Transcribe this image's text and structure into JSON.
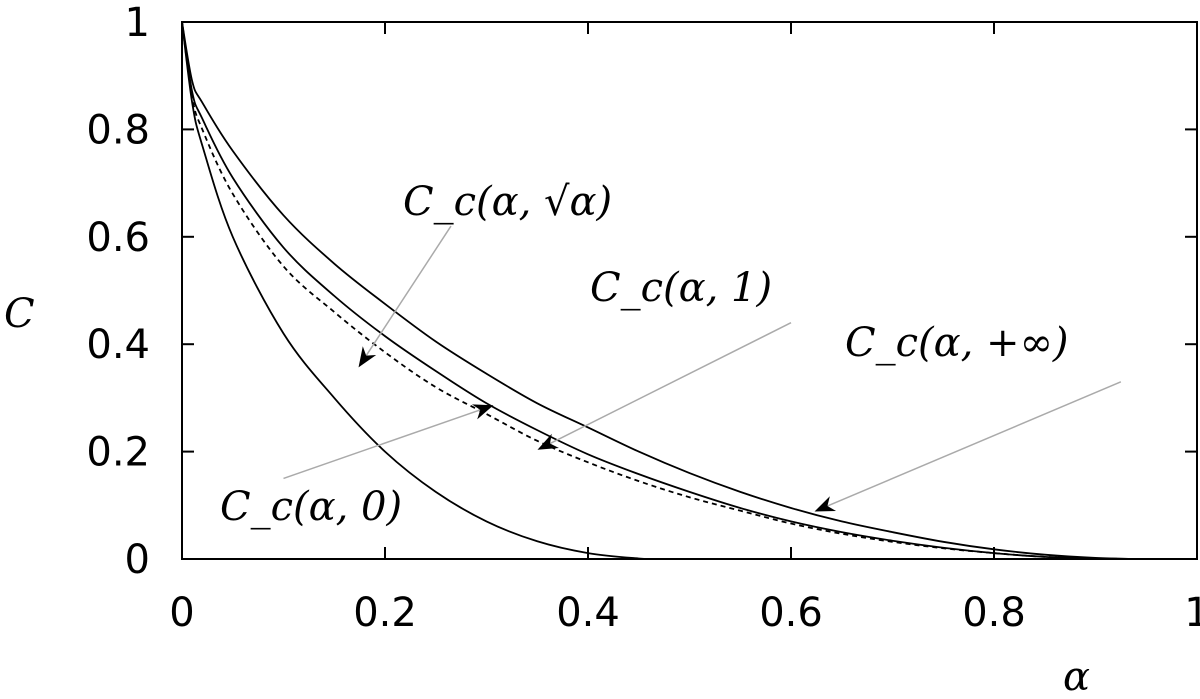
{
  "chart_data": {
    "type": "line",
    "title": "",
    "xlabel": "α",
    "ylabel": "C",
    "xlim": [
      0,
      1
    ],
    "ylim": [
      0,
      1
    ],
    "xticks": [
      "0",
      "0.2",
      "0.4",
      "0.6",
      "0.8",
      "1"
    ],
    "yticks": [
      "0",
      "0.2",
      "0.4",
      "0.6",
      "0.8",
      "1"
    ],
    "grid": false,
    "legend": "none",
    "series": [
      {
        "label": "C_c(α, +∞)",
        "style": "solid",
        "x": [
          0,
          0.01,
          0.02,
          0.05,
          0.1,
          0.15,
          0.2,
          0.25,
          0.3,
          0.35,
          0.4,
          0.45,
          0.5,
          0.55,
          0.6,
          0.65,
          0.7,
          0.75,
          0.8,
          0.85,
          0.9,
          0.94
        ],
        "y": [
          1,
          0.89,
          0.85,
          0.76,
          0.64,
          0.55,
          0.475,
          0.405,
          0.345,
          0.29,
          0.245,
          0.2,
          0.16,
          0.125,
          0.095,
          0.07,
          0.05,
          0.032,
          0.018,
          0.008,
          0.002,
          0
        ]
      },
      {
        "label": "C_c(α, 1)",
        "style": "solid",
        "x": [
          0,
          0.01,
          0.02,
          0.05,
          0.1,
          0.15,
          0.2,
          0.25,
          0.3,
          0.35,
          0.4,
          0.45,
          0.5,
          0.55,
          0.6,
          0.65,
          0.7,
          0.75,
          0.8,
          0.85,
          0.9,
          0.94
        ],
        "y": [
          1,
          0.87,
          0.82,
          0.71,
          0.58,
          0.49,
          0.415,
          0.35,
          0.29,
          0.24,
          0.195,
          0.158,
          0.125,
          0.095,
          0.07,
          0.05,
          0.034,
          0.021,
          0.011,
          0.004,
          0.001,
          0
        ]
      },
      {
        "label": "C_c(α, √α)",
        "style": "dashed",
        "x": [
          0,
          0.01,
          0.02,
          0.05,
          0.1,
          0.15,
          0.2,
          0.25,
          0.3,
          0.35,
          0.4,
          0.45,
          0.5,
          0.55,
          0.6,
          0.65,
          0.7,
          0.75,
          0.8,
          0.85,
          0.9,
          0.94
        ],
        "y": [
          1,
          0.86,
          0.8,
          0.68,
          0.545,
          0.46,
          0.385,
          0.32,
          0.27,
          0.22,
          0.18,
          0.145,
          0.115,
          0.09,
          0.066,
          0.047,
          0.032,
          0.02,
          0.011,
          0.004,
          0.001,
          0
        ]
      },
      {
        "label": "C_c(α, 0)",
        "style": "solid",
        "x": [
          0,
          0.01,
          0.02,
          0.05,
          0.1,
          0.15,
          0.2,
          0.25,
          0.3,
          0.35,
          0.4,
          0.45,
          0.47
        ],
        "y": [
          1,
          0.85,
          0.77,
          0.6,
          0.42,
          0.3,
          0.2,
          0.125,
          0.07,
          0.033,
          0.011,
          0.001,
          0
        ]
      }
    ],
    "annotations": [
      {
        "text": "C_c(α, √α)",
        "label_pos": [
          0.108,
          0.66
        ],
        "arrow_from": [
          0.265,
          0.62
        ],
        "arrow_to": [
          0.175,
          0.36
        ]
      },
      {
        "text": "C_c(α, 1)",
        "label_pos": [
          0.205,
          0.51
        ],
        "arrow_from": [
          0.6,
          0.44
        ],
        "arrow_to": [
          0.352,
          0.205
        ]
      },
      {
        "text": "C_c(α, +∞)",
        "label_pos": [
          0.325,
          0.375
        ],
        "arrow_from": [
          0.925,
          0.33
        ],
        "arrow_to": [
          0.625,
          0.09
        ]
      },
      {
        "text": "C_c(α, 0)",
        "label_pos": [
          0.1,
          0.75
        ],
        "arrow_from": [
          0.1,
          0.15
        ],
        "arrow_to": [
          0.305,
          0.285
        ]
      }
    ]
  }
}
